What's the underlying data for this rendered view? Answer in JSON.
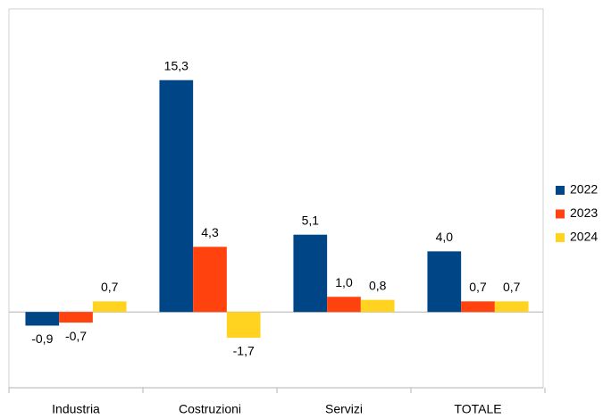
{
  "chart_data": {
    "type": "bar",
    "categories": [
      "Industria",
      "Costruzioni",
      "Servizi",
      "TOTALE"
    ],
    "series": [
      {
        "name": "2022",
        "color": "#004586",
        "values": [
          -0.9,
          15.3,
          5.1,
          4.0
        ],
        "value_labels": [
          "-0,9",
          "15,3",
          "5,1",
          "4,0"
        ]
      },
      {
        "name": "2023",
        "color": "#ff420e",
        "values": [
          -0.7,
          4.3,
          1.0,
          0.7
        ],
        "value_labels": [
          "-0,7",
          "4,3",
          "1,0",
          "0,7"
        ]
      },
      {
        "name": "2024",
        "color": "#ffd320",
        "values": [
          0.7,
          -1.7,
          0.8,
          0.7
        ],
        "value_labels": [
          "0,7",
          "-1,7",
          "0,8",
          "0,7"
        ]
      }
    ],
    "ylim": [
      -5,
      20
    ],
    "legend": "right"
  }
}
